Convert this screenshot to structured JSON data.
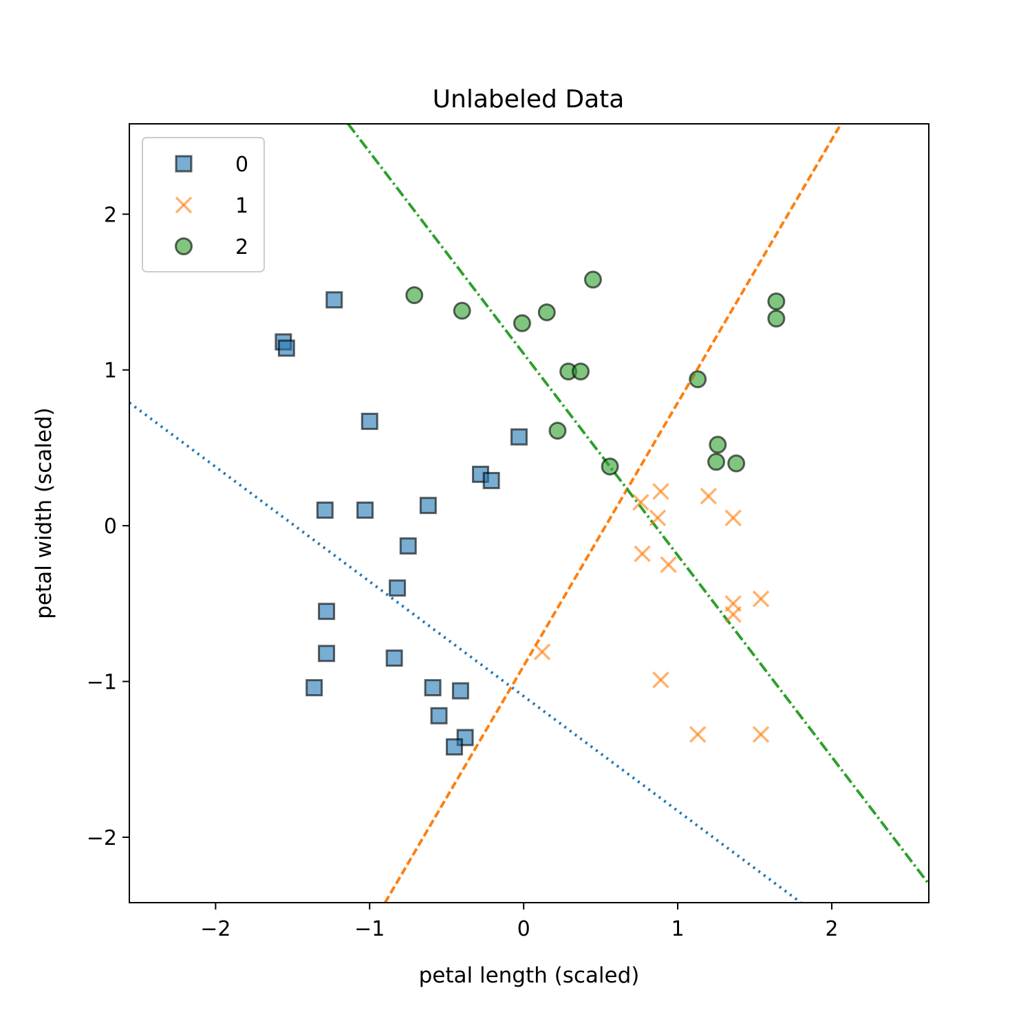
{
  "chart_data": {
    "type": "scatter",
    "title": "Unlabeled Data",
    "xlabel": "petal length (scaled)",
    "ylabel": "petal width (scaled)",
    "xlim": [
      -2.56,
      2.63
    ],
    "ylim": [
      -2.42,
      2.58
    ],
    "xticks": [
      -2,
      -1,
      0,
      1,
      2
    ],
    "yticks": [
      -2,
      -1,
      0,
      1,
      2
    ],
    "xtick_labels": [
      "−2",
      "−1",
      "0",
      "1",
      "2"
    ],
    "ytick_labels": [
      "−2",
      "−1",
      "0",
      "1",
      "2"
    ],
    "grid": false,
    "legend_position": "top-left",
    "series": [
      {
        "name": "0",
        "marker": "square",
        "color": "#1f77b4",
        "points": [
          [
            -1.56,
            1.18
          ],
          [
            -1.54,
            1.14
          ],
          [
            -1.23,
            1.45
          ],
          [
            -1.0,
            0.67
          ],
          [
            -0.03,
            0.57
          ],
          [
            -0.28,
            0.33
          ],
          [
            -0.21,
            0.29
          ],
          [
            -1.29,
            0.1
          ],
          [
            -1.03,
            0.1
          ],
          [
            -0.62,
            0.13
          ],
          [
            -0.75,
            -0.13
          ],
          [
            -0.82,
            -0.4
          ],
          [
            -1.28,
            -0.55
          ],
          [
            -1.28,
            -0.82
          ],
          [
            -0.84,
            -0.85
          ],
          [
            -1.36,
            -1.04
          ],
          [
            -0.59,
            -1.04
          ],
          [
            -0.41,
            -1.06
          ],
          [
            -0.55,
            -1.22
          ],
          [
            -0.38,
            -1.36
          ],
          [
            -0.45,
            -1.42
          ]
        ]
      },
      {
        "name": "1",
        "marker": "x",
        "color": "#ff7f0e",
        "points": [
          [
            0.76,
            0.15
          ],
          [
            0.89,
            0.22
          ],
          [
            0.87,
            0.05
          ],
          [
            1.2,
            0.19
          ],
          [
            1.36,
            0.05
          ],
          [
            0.77,
            -0.18
          ],
          [
            0.94,
            -0.25
          ],
          [
            1.36,
            -0.5
          ],
          [
            1.36,
            -0.57
          ],
          [
            1.54,
            -0.47
          ],
          [
            0.12,
            -0.81
          ],
          [
            0.89,
            -0.99
          ],
          [
            1.13,
            -1.34
          ],
          [
            1.54,
            -1.34
          ]
        ]
      },
      {
        "name": "2",
        "marker": "circle",
        "color": "#2ca02c",
        "points": [
          [
            -0.71,
            1.48
          ],
          [
            -0.4,
            1.38
          ],
          [
            -0.01,
            1.3
          ],
          [
            0.15,
            1.37
          ],
          [
            0.45,
            1.58
          ],
          [
            1.64,
            1.44
          ],
          [
            1.64,
            1.33
          ],
          [
            0.29,
            0.99
          ],
          [
            0.37,
            0.99
          ],
          [
            1.13,
            0.94
          ],
          [
            0.22,
            0.61
          ],
          [
            0.56,
            0.38
          ],
          [
            1.26,
            0.52
          ],
          [
            1.25,
            0.41
          ],
          [
            1.38,
            0.4
          ]
        ]
      }
    ],
    "lines": [
      {
        "name": "boundary-0",
        "style": "dotted",
        "color": "#1f77b4",
        "from": [
          -2.56,
          0.79
        ],
        "to": [
          1.8,
          -2.42
        ]
      },
      {
        "name": "boundary-1",
        "style": "dashed",
        "color": "#ff7f0e",
        "from": [
          -0.9,
          -2.42
        ],
        "to": [
          2.06,
          2.58
        ]
      },
      {
        "name": "boundary-2",
        "style": "dashdot",
        "color": "#2ca02c",
        "from": [
          -1.14,
          2.58
        ],
        "to": [
          2.63,
          -2.3
        ]
      }
    ]
  }
}
